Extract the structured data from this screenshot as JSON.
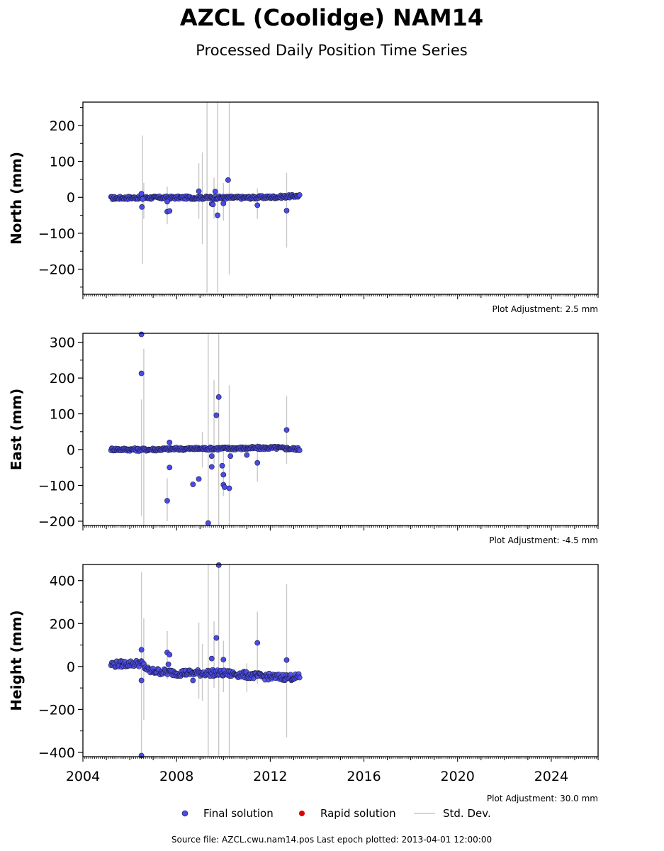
{
  "title": "AZCL (Coolidge) NAM14",
  "subtitle": "Processed Daily Position Time Series",
  "legend": {
    "final": "Final solution",
    "rapid": "Rapid solution",
    "std": "Std. Dev."
  },
  "source_line": "Source file: AZCL.cwu.nam14.pos  Last epoch plotted: 2013-04-01 12:00:00",
  "colors": {
    "final": "#4b4be8",
    "final_edge": "#1a1a3a",
    "rapid": "#e00000",
    "std": "#c8c8c8"
  },
  "chart_data": [
    {
      "type": "scatter",
      "panel": "north",
      "ylabel": "North (mm)",
      "adjustment": "Plot Adjustment: 2.5 mm",
      "xlim": [
        2004.0,
        2026.0
      ],
      "ylim": [
        -270,
        265
      ],
      "yticks": [
        -200,
        -100,
        0,
        100,
        200
      ],
      "yticklabels": [
        "−200",
        "−100",
        "0",
        "100",
        "200"
      ],
      "xticks": [
        2004,
        2008,
        2012,
        2016,
        2020,
        2024
      ],
      "trend": [
        [
          2005.2,
          -2
        ],
        [
          2006.5,
          -1
        ],
        [
          2008.0,
          -1
        ],
        [
          2009.5,
          -1
        ],
        [
          2011.0,
          -1
        ],
        [
          2012.3,
          1
        ],
        [
          2013.25,
          4
        ]
      ],
      "outliers": [
        [
          2006.5,
          10,
          0,
          0
        ],
        [
          2006.52,
          -27,
          0,
          0
        ],
        [
          2006.55,
          -5,
          0,
          0
        ],
        [
          2007.6,
          -12,
          0,
          0
        ],
        [
          2007.6,
          -40,
          0,
          0
        ],
        [
          2007.7,
          -38,
          0,
          0
        ],
        [
          2008.95,
          17,
          0,
          0
        ],
        [
          2009.5,
          -18,
          0,
          0
        ],
        [
          2009.55,
          -20,
          0,
          0
        ],
        [
          2009.65,
          16,
          0,
          0
        ],
        [
          2009.75,
          -50,
          0,
          0
        ],
        [
          2010.0,
          -17,
          0,
          0
        ],
        [
          2010.2,
          48,
          0,
          0
        ],
        [
          2011.45,
          -22,
          0,
          0
        ],
        [
          2012.7,
          -37,
          0,
          0
        ]
      ],
      "errorbars": [
        [
          2006.55,
          -185,
          172
        ],
        [
          2006.6,
          -60,
          40
        ],
        [
          2007.6,
          -75,
          30
        ],
        [
          2008.95,
          -60,
          95
        ],
        [
          2009.1,
          -130,
          125
        ],
        [
          2009.3,
          -265,
          265
        ],
        [
          2009.6,
          -60,
          55
        ],
        [
          2009.75,
          -265,
          265
        ],
        [
          2010.0,
          -65,
          40
        ],
        [
          2010.25,
          -215,
          265
        ],
        [
          2011.45,
          -60,
          25
        ],
        [
          2012.7,
          -140,
          68
        ]
      ]
    },
    {
      "type": "scatter",
      "panel": "east",
      "ylabel": "East (mm)",
      "adjustment": "Plot Adjustment: -4.5 mm",
      "xlim": [
        2004.0,
        2026.0
      ],
      "ylim": [
        -212,
        325
      ],
      "yticks": [
        -200,
        -100,
        0,
        100,
        200,
        300
      ],
      "yticklabels": [
        "−200",
        "−100",
        "0",
        "100",
        "200",
        "300"
      ],
      "xticks": [
        2004,
        2008,
        2012,
        2016,
        2020,
        2024
      ],
      "trend": [
        [
          2005.2,
          1
        ],
        [
          2006.5,
          0
        ],
        [
          2008.0,
          2
        ],
        [
          2009.5,
          3
        ],
        [
          2011.0,
          4
        ],
        [
          2012.3,
          5
        ],
        [
          2013.25,
          1
        ]
      ],
      "outliers": [
        [
          2006.5,
          322,
          0,
          0
        ],
        [
          2006.5,
          213,
          0,
          0
        ],
        [
          2007.6,
          -143,
          0,
          0
        ],
        [
          2007.7,
          -50,
          0,
          0
        ],
        [
          2007.7,
          20,
          0,
          0
        ],
        [
          2008.7,
          -97,
          0,
          0
        ],
        [
          2008.95,
          -82,
          0,
          0
        ],
        [
          2009.35,
          -205,
          0,
          0
        ],
        [
          2009.5,
          -48,
          0,
          0
        ],
        [
          2009.5,
          -18,
          0,
          0
        ],
        [
          2009.7,
          96,
          0,
          0
        ],
        [
          2009.8,
          147,
          0,
          0
        ],
        [
          2009.95,
          -45,
          0,
          0
        ],
        [
          2010.0,
          -70,
          0,
          0
        ],
        [
          2010.0,
          -98,
          0,
          0
        ],
        [
          2010.05,
          -105,
          0,
          0
        ],
        [
          2010.25,
          -108,
          0,
          0
        ],
        [
          2010.3,
          -18,
          0,
          0
        ],
        [
          2011.0,
          -15,
          0,
          0
        ],
        [
          2011.45,
          -37,
          0,
          0
        ],
        [
          2012.7,
          55,
          0,
          0
        ]
      ],
      "errorbars": [
        [
          2006.5,
          -185,
          140
        ],
        [
          2006.6,
          -212,
          282
        ],
        [
          2007.6,
          -200,
          -80
        ],
        [
          2009.1,
          -50,
          50
        ],
        [
          2009.35,
          -212,
          325
        ],
        [
          2009.6,
          -40,
          195
        ],
        [
          2009.8,
          -212,
          325
        ],
        [
          2010.0,
          -130,
          10
        ],
        [
          2010.25,
          -212,
          180
        ],
        [
          2011.45,
          -90,
          20
        ],
        [
          2012.7,
          -40,
          150
        ]
      ]
    },
    {
      "type": "scatter",
      "panel": "height",
      "ylabel": "Height (mm)",
      "adjustment": "Plot Adjustment: 30.0 mm",
      "xlim": [
        2004.0,
        2026.0
      ],
      "ylim": [
        -420,
        475
      ],
      "yticks": [
        -400,
        -200,
        0,
        200,
        400
      ],
      "yticklabels": [
        "−400",
        "−200",
        "0",
        "200",
        "400"
      ],
      "xticks": [
        2004,
        2008,
        2012,
        2016,
        2020,
        2024
      ],
      "xticklabels": [
        "2004",
        "2008",
        "2012",
        "2016",
        "2020",
        "2024"
      ],
      "trend": [
        [
          2005.2,
          10
        ],
        [
          2006.5,
          15
        ],
        [
          2006.8,
          -20
        ],
        [
          2008.0,
          -30
        ],
        [
          2009.5,
          -30
        ],
        [
          2010.5,
          -35
        ],
        [
          2011.5,
          -45
        ],
        [
          2012.3,
          -50
        ],
        [
          2013.25,
          -50
        ]
      ],
      "outliers": [
        [
          2006.5,
          78,
          0,
          0
        ],
        [
          2006.5,
          -65,
          0,
          0
        ],
        [
          2006.5,
          -415,
          0,
          0
        ],
        [
          2007.6,
          65,
          0,
          0
        ],
        [
          2007.7,
          55,
          0,
          0
        ],
        [
          2007.65,
          10,
          0,
          0
        ],
        [
          2008.7,
          -65,
          0,
          0
        ],
        [
          2009.5,
          37,
          0,
          0
        ],
        [
          2009.7,
          133,
          0,
          0
        ],
        [
          2009.8,
          472,
          0,
          0
        ],
        [
          2010.0,
          32,
          0,
          0
        ],
        [
          2011.45,
          110,
          0,
          0
        ],
        [
          2012.7,
          30,
          0,
          0
        ]
      ],
      "errorbars": [
        [
          2006.5,
          -420,
          440
        ],
        [
          2006.6,
          -250,
          225
        ],
        [
          2007.6,
          -60,
          165
        ],
        [
          2008.95,
          -150,
          205
        ],
        [
          2009.1,
          -160,
          105
        ],
        [
          2009.35,
          -420,
          475
        ],
        [
          2009.6,
          -100,
          210
        ],
        [
          2009.8,
          -420,
          475
        ],
        [
          2010.0,
          -120,
          120
        ],
        [
          2010.25,
          -420,
          475
        ],
        [
          2011.0,
          -120,
          15
        ],
        [
          2011.45,
          -80,
          255
        ],
        [
          2012.7,
          -330,
          385
        ]
      ]
    }
  ]
}
